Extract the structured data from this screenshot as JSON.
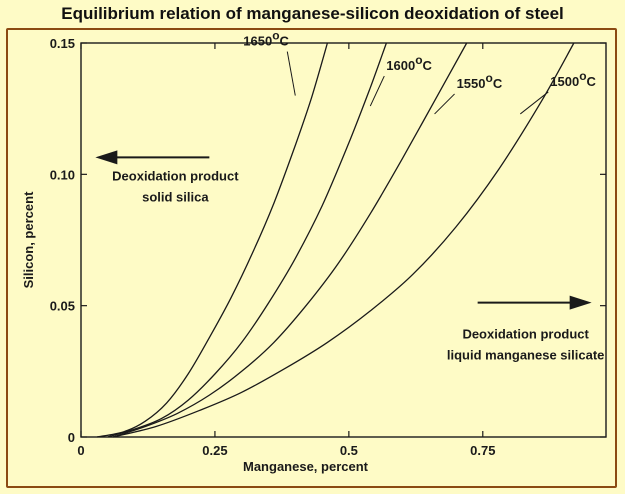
{
  "colors": {
    "background": "#fefbc6",
    "border": "#8b4a12",
    "ink": "#1a1a1a"
  },
  "chart_data": {
    "type": "line",
    "title": "Equilibrium relation of manganese-silicon deoxidation of steel",
    "xlabel": "Manganese, percent",
    "ylabel": "Silicon, percent",
    "xlim": [
      0,
      0.98
    ],
    "ylim": [
      0,
      0.15
    ],
    "x_ticks": [
      {
        "value": 0,
        "label": "0"
      },
      {
        "value": 0.25,
        "label": "0.25"
      },
      {
        "value": 0.5,
        "label": "0.5"
      },
      {
        "value": 0.75,
        "label": "0.75"
      }
    ],
    "y_ticks": [
      {
        "value": 0,
        "label": "0"
      },
      {
        "value": 0.05,
        "label": "0.05"
      },
      {
        "value": 0.1,
        "label": "0.10"
      },
      {
        "value": 0.15,
        "label": "0.15"
      }
    ],
    "grid": false,
    "series": [
      {
        "name": "1650°C",
        "x": [
          0.03,
          0.08,
          0.12,
          0.16,
          0.2,
          0.24,
          0.28,
          0.32,
          0.36,
          0.4,
          0.43,
          0.46
        ],
        "y": [
          0,
          0.002,
          0.006,
          0.013,
          0.024,
          0.038,
          0.053,
          0.07,
          0.089,
          0.111,
          0.129,
          0.15
        ]
      },
      {
        "name": "1600°C",
        "x": [
          0.05,
          0.1,
          0.15,
          0.2,
          0.25,
          0.3,
          0.35,
          0.4,
          0.45,
          0.5,
          0.54,
          0.57
        ],
        "y": [
          0,
          0.003,
          0.007,
          0.014,
          0.024,
          0.036,
          0.051,
          0.068,
          0.088,
          0.112,
          0.133,
          0.15
        ]
      },
      {
        "name": "1550°C",
        "x": [
          0.06,
          0.12,
          0.18,
          0.24,
          0.3,
          0.36,
          0.42,
          0.48,
          0.54,
          0.6,
          0.66,
          0.72
        ],
        "y": [
          0,
          0.004,
          0.009,
          0.016,
          0.025,
          0.036,
          0.05,
          0.066,
          0.085,
          0.106,
          0.128,
          0.15
        ]
      },
      {
        "name": "1500°C",
        "x": [
          0.06,
          0.14,
          0.22,
          0.3,
          0.38,
          0.46,
          0.54,
          0.62,
          0.7,
          0.78,
          0.86,
          0.92
        ],
        "y": [
          0,
          0.004,
          0.01,
          0.017,
          0.026,
          0.036,
          0.048,
          0.062,
          0.08,
          0.102,
          0.128,
          0.15
        ]
      }
    ],
    "curve_labels": [
      {
        "main": "1650",
        "sup": "o",
        "unit": "C",
        "series": 0,
        "x": 0.4,
        "y": 0.13
      },
      {
        "main": "1600",
        "sup": "o",
        "unit": "C",
        "series": 1,
        "x": 0.54,
        "y": 0.126
      },
      {
        "main": "1550",
        "sup": "o",
        "unit": "C",
        "series": 2,
        "x": 0.66,
        "y": 0.123
      },
      {
        "main": "1500",
        "sup": "o",
        "unit": "C",
        "series": 3,
        "x": 0.82,
        "y": 0.123
      }
    ],
    "annotations": [
      {
        "lines": [
          "Deoxidation product",
          "solid silica"
        ],
        "arrow": "left",
        "x": 0.15,
        "y": 0.1
      },
      {
        "lines": [
          "Deoxidation product",
          "liquid manganese silicate"
        ],
        "arrow": "right",
        "x": 0.83,
        "y": 0.05
      }
    ]
  }
}
